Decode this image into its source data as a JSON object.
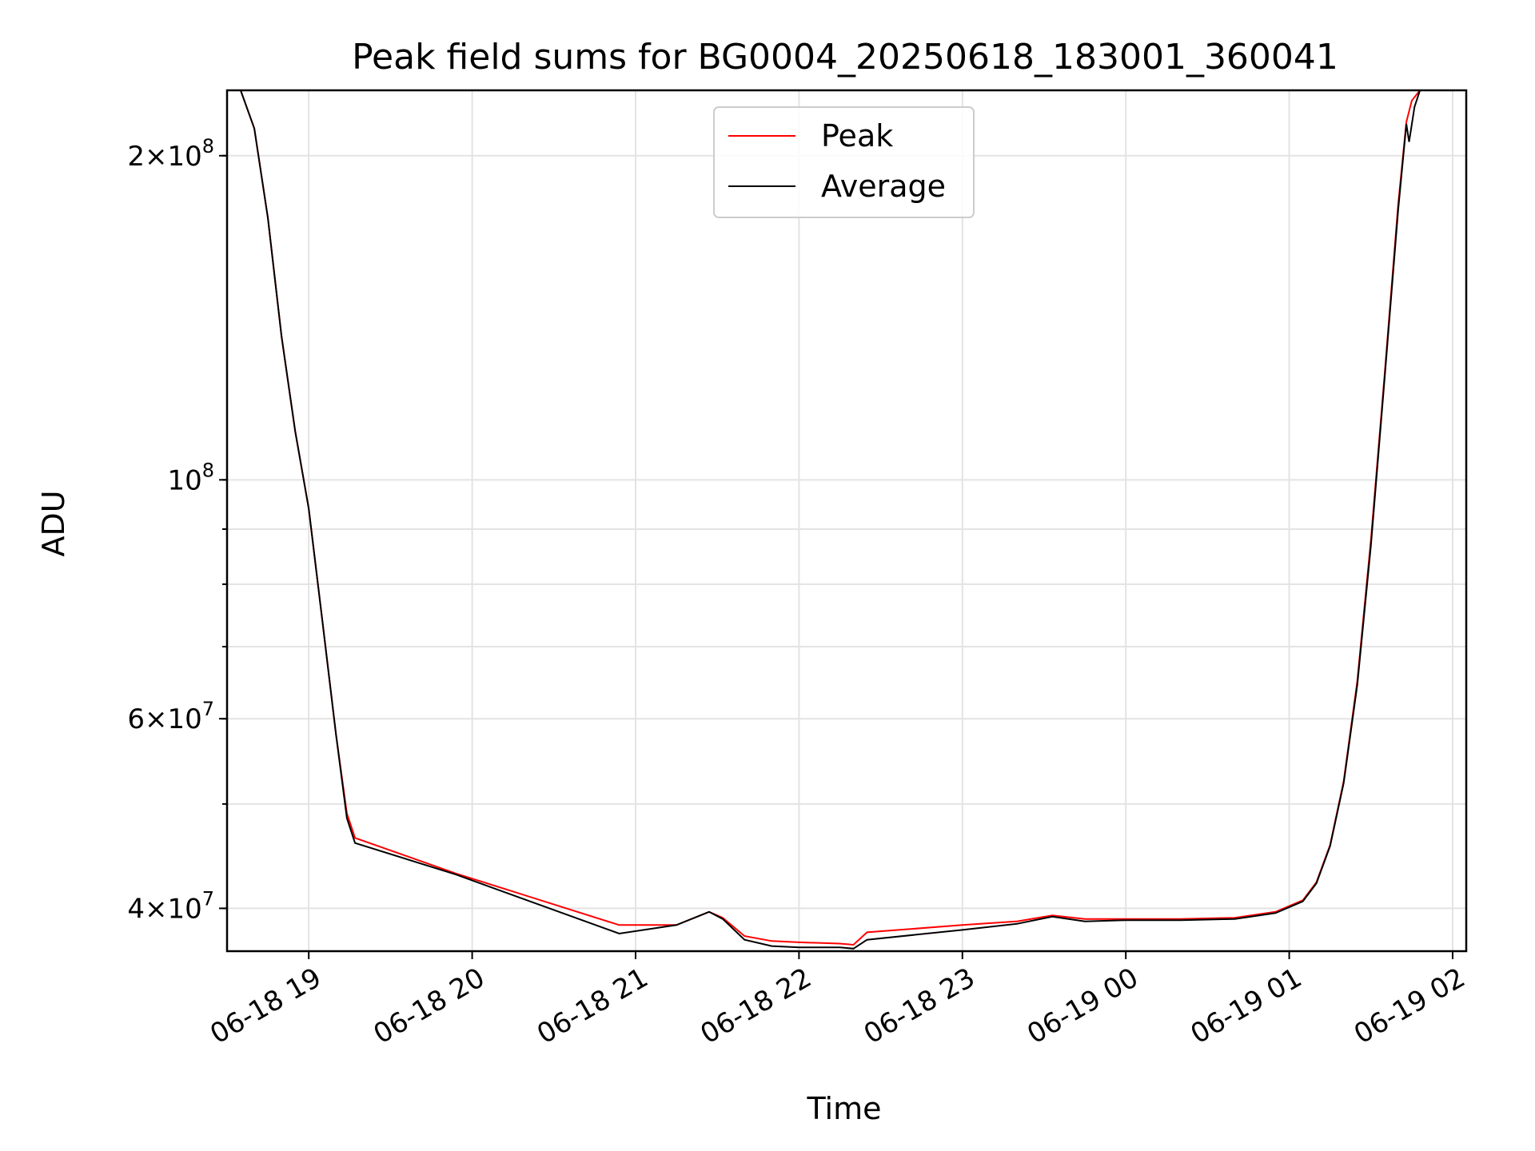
{
  "chart_data": {
    "type": "line",
    "title": "Peak field sums for BG0004_20250618_183001_360041",
    "xlabel": "Time",
    "ylabel": "ADU",
    "yscale": "log",
    "ylim": [
      36500000,
      230000000
    ],
    "xlim": [
      "06-18 18:30",
      "06-19 02:05"
    ],
    "x_ticks": [
      "06-18 19",
      "06-18 20",
      "06-18 21",
      "06-18 22",
      "06-18 23",
      "06-19 00",
      "06-19 01",
      "06-19 02"
    ],
    "y_ticks": [
      {
        "value": 40000000,
        "base": "4",
        "exp": "7"
      },
      {
        "value": 60000000,
        "base": "6",
        "exp": "7"
      },
      {
        "value": 100000000,
        "base": "",
        "exp": "8"
      },
      {
        "value": 200000000,
        "base": "2",
        "exp": "8"
      }
    ],
    "grid": true,
    "legend": {
      "placement": "top-center",
      "entries": [
        {
          "name": "Peak",
          "color": "#ff0000"
        },
        {
          "name": "Average",
          "color": "#000000"
        }
      ]
    },
    "series": [
      {
        "name": "Peak",
        "color": "#ff0000",
        "points": [
          [
            "06-18 18:30",
            230000000
          ],
          [
            "06-18 18:35",
            230000000
          ],
          [
            "06-18 18:40",
            212000000
          ],
          [
            "06-18 18:45",
            175000000
          ],
          [
            "06-18 18:50",
            136000000
          ],
          [
            "06-18 18:55",
            111000000
          ],
          [
            "06-18 19:00",
            94000000
          ],
          [
            "06-18 19:05",
            74000000
          ],
          [
            "06-18 19:10",
            58000000
          ],
          [
            "06-18 19:14",
            49000000
          ],
          [
            "06-18 19:17",
            46500000
          ],
          [
            "06-18 19:54",
            43100000
          ],
          [
            "06-18 20:54",
            38600000
          ],
          [
            "06-18 21:15",
            38600000
          ],
          [
            "06-18 21:27",
            39700000
          ],
          [
            "06-18 21:32",
            39200000
          ],
          [
            "06-18 21:40",
            37700000
          ],
          [
            "06-18 21:50",
            37300000
          ],
          [
            "06-18 22:00",
            37200000
          ],
          [
            "06-18 22:15",
            37100000
          ],
          [
            "06-18 22:20",
            37000000
          ],
          [
            "06-18 22:25",
            38000000
          ],
          [
            "06-18 23:00",
            38600000
          ],
          [
            "06-18 23:20",
            38900000
          ],
          [
            "06-18 23:33",
            39400000
          ],
          [
            "06-18 23:45",
            39100000
          ],
          [
            "06-19 00:00",
            39100000
          ],
          [
            "06-19 00:20",
            39100000
          ],
          [
            "06-19 00:40",
            39200000
          ],
          [
            "06-19 00:55",
            39700000
          ],
          [
            "06-19 01:05",
            40700000
          ],
          [
            "06-19 01:10",
            42300000
          ],
          [
            "06-19 01:15",
            45800000
          ],
          [
            "06-19 01:20",
            52500000
          ],
          [
            "06-19 01:25",
            65000000
          ],
          [
            "06-19 01:30",
            88000000
          ],
          [
            "06-19 01:35",
            125000000
          ],
          [
            "06-19 01:40",
            180000000
          ],
          [
            "06-19 01:43",
            215000000
          ],
          [
            "06-19 01:45",
            225000000
          ],
          [
            "06-19 01:48",
            230000000
          ],
          [
            "06-19 02:05",
            230000000
          ]
        ]
      },
      {
        "name": "Average",
        "color": "#000000",
        "points": [
          [
            "06-18 18:30",
            230000000
          ],
          [
            "06-18 18:35",
            230000000
          ],
          [
            "06-18 18:40",
            212000000
          ],
          [
            "06-18 18:45",
            175000000
          ],
          [
            "06-18 18:50",
            136000000
          ],
          [
            "06-18 18:55",
            111000000
          ],
          [
            "06-18 19:00",
            94000000
          ],
          [
            "06-18 19:05",
            74000000
          ],
          [
            "06-18 19:10",
            58000000
          ],
          [
            "06-18 19:14",
            48500000
          ],
          [
            "06-18 19:17",
            46000000
          ],
          [
            "06-18 19:54",
            43000000
          ],
          [
            "06-18 20:54",
            37900000
          ],
          [
            "06-18 21:15",
            38600000
          ],
          [
            "06-18 21:27",
            39700000
          ],
          [
            "06-18 21:32",
            39100000
          ],
          [
            "06-18 21:40",
            37400000
          ],
          [
            "06-18 21:50",
            36900000
          ],
          [
            "06-18 22:00",
            36800000
          ],
          [
            "06-18 22:15",
            36800000
          ],
          [
            "06-18 22:20",
            36700000
          ],
          [
            "06-18 22:25",
            37400000
          ],
          [
            "06-18 23:00",
            38200000
          ],
          [
            "06-18 23:20",
            38700000
          ],
          [
            "06-18 23:33",
            39300000
          ],
          [
            "06-18 23:45",
            38900000
          ],
          [
            "06-19 00:00",
            39000000
          ],
          [
            "06-19 00:20",
            39000000
          ],
          [
            "06-19 00:40",
            39100000
          ],
          [
            "06-19 00:55",
            39600000
          ],
          [
            "06-19 01:05",
            40600000
          ],
          [
            "06-19 01:10",
            42200000
          ],
          [
            "06-19 01:15",
            45700000
          ],
          [
            "06-19 01:20",
            52300000
          ],
          [
            "06-19 01:25",
            64500000
          ],
          [
            "06-19 01:30",
            87000000
          ],
          [
            "06-19 01:35",
            124000000
          ],
          [
            "06-19 01:40",
            178000000
          ],
          [
            "06-19 01:43",
            214000000
          ],
          [
            "06-19 01:44",
            206000000
          ],
          [
            "06-19 01:46",
            222000000
          ],
          [
            "06-19 01:48",
            230000000
          ],
          [
            "06-19 02:05",
            230000000
          ]
        ]
      }
    ]
  }
}
